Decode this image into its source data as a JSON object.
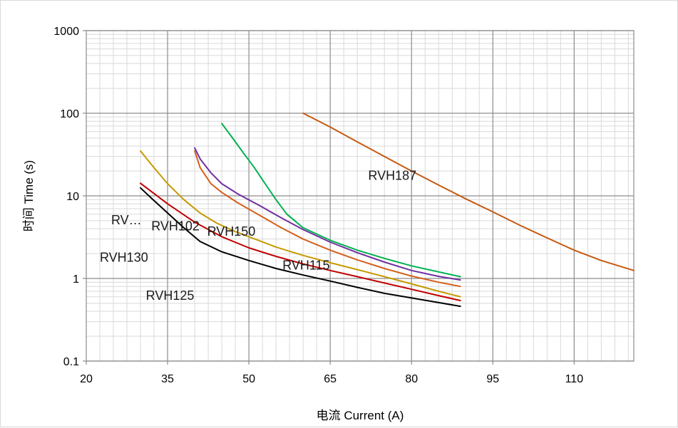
{
  "chart_data": {
    "type": "line",
    "xlabel": "电流 Current (A)",
    "ylabel": "时间 Time (s)",
    "xlim": [
      20,
      121
    ],
    "ylim": [
      0.1,
      1000
    ],
    "y_scale": "log",
    "x_ticks": [
      20,
      35,
      50,
      65,
      80,
      95,
      110
    ],
    "y_ticks": [
      0.1,
      1,
      10,
      100,
      1000
    ],
    "y_tick_labels": [
      "0.1",
      "1",
      "10",
      "100",
      "1000"
    ],
    "grid": true,
    "legend": "none",
    "series": [
      {
        "name": "RVH125",
        "color": "#000000",
        "label_at": [
          31,
          0.55
        ],
        "x": [
          30,
          32,
          35,
          38,
          41,
          45,
          50,
          55,
          60,
          65,
          70,
          75,
          80,
          85,
          89
        ],
        "y": [
          12.5,
          9.4,
          6.2,
          4.1,
          2.8,
          2.1,
          1.65,
          1.32,
          1.1,
          0.93,
          0.78,
          0.66,
          0.58,
          0.51,
          0.46
        ]
      },
      {
        "name": "RVH130",
        "color": "#c00000",
        "label_at": [
          22.5,
          1.6
        ],
        "x": [
          30,
          35,
          40,
          45,
          50,
          55,
          60,
          65,
          70,
          75,
          80,
          85,
          89
        ],
        "y": [
          14.2,
          8.0,
          4.8,
          3.2,
          2.35,
          1.85,
          1.5,
          1.25,
          1.05,
          0.88,
          0.74,
          0.62,
          0.54
        ]
      },
      {
        "name": "RV…",
        "color": "#c59a00",
        "label_at": [
          24.6,
          4.5
        ],
        "x": [
          30,
          32,
          35,
          38,
          41,
          44,
          47,
          50,
          55,
          60,
          65,
          70,
          75,
          80,
          85,
          89
        ],
        "y": [
          35,
          24,
          14,
          9.0,
          6.2,
          4.7,
          3.8,
          3.2,
          2.4,
          1.9,
          1.55,
          1.28,
          1.05,
          0.86,
          0.7,
          0.6
        ]
      },
      {
        "name": "RVH102",
        "color": "#d4601b",
        "label_at": [
          32,
          3.8
        ],
        "x": [
          40,
          41,
          43,
          45,
          48,
          52,
          56,
          60,
          65,
          70,
          75,
          80,
          85,
          89
        ],
        "y": [
          35,
          22,
          14,
          11,
          8.2,
          5.8,
          4.1,
          3.0,
          2.2,
          1.68,
          1.32,
          1.07,
          0.9,
          0.8
        ]
      },
      {
        "name": "RVH150",
        "color": "#7030a0",
        "label_at": [
          42.3,
          3.3
        ],
        "x": [
          40,
          41,
          43,
          45,
          48,
          52,
          56,
          60,
          65,
          70,
          75,
          80,
          85,
          89
        ],
        "y": [
          38,
          28,
          19,
          14,
          10.5,
          7.6,
          5.4,
          3.9,
          2.75,
          2.05,
          1.58,
          1.25,
          1.06,
          0.96
        ]
      },
      {
        "name": "RVH115",
        "color": "#00b050",
        "label_at": [
          56.2,
          1.28
        ],
        "x": [
          45,
          47,
          49,
          51,
          53,
          55,
          57,
          60,
          65,
          70,
          75,
          80,
          85,
          89
        ],
        "y": [
          75,
          50,
          33,
          22,
          14,
          9.0,
          6.0,
          4.1,
          2.9,
          2.2,
          1.75,
          1.42,
          1.2,
          1.05
        ]
      },
      {
        "name": "RVH187",
        "color": "#c55a11",
        "label_at": [
          72,
          15.7
        ],
        "x": [
          60,
          65,
          70,
          75,
          80,
          85,
          90,
          95,
          100,
          105,
          110,
          115,
          121
        ],
        "y": [
          100,
          68,
          45,
          30,
          20,
          13.5,
          9.2,
          6.4,
          4.4,
          3.1,
          2.2,
          1.65,
          1.25
        ]
      }
    ]
  }
}
